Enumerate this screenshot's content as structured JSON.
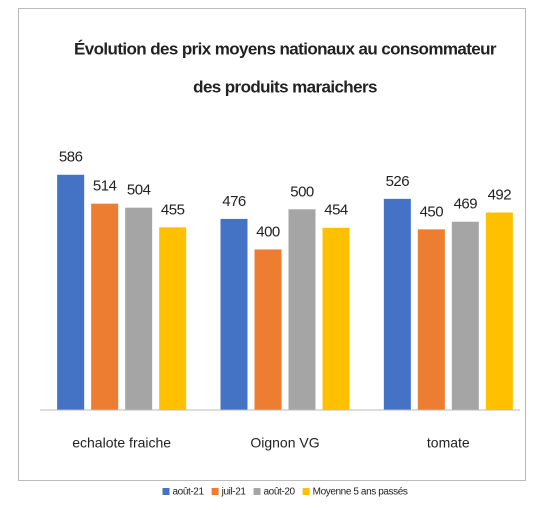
{
  "chart_data": {
    "type": "bar",
    "title": [
      "Évolution des prix moyens nationaux au consommateur",
      "des produits maraichers"
    ],
    "categories": [
      "echalote fraiche",
      "Oignon VG",
      "tomate"
    ],
    "series": [
      {
        "name": "août-21",
        "color": "#4472c4",
        "values": [
          586,
          476,
          526
        ]
      },
      {
        "name": "juil-21",
        "color": "#ed7d31",
        "values": [
          514,
          400,
          450
        ]
      },
      {
        "name": "août-20",
        "color": "#a5a5a5",
        "values": [
          504,
          500,
          469
        ]
      },
      {
        "name": "Moyenne 5 ans passés",
        "color": "#ffc000",
        "values": [
          455,
          454,
          492
        ]
      }
    ],
    "ylim": [
      0,
      700
    ]
  }
}
